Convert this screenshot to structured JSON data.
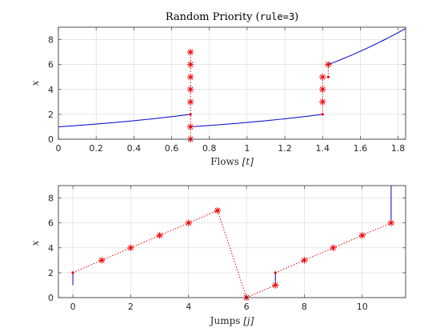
{
  "figure": {
    "title_prefix": "Random Priority (",
    "title_code": "rule=3",
    "title_suffix": ")"
  },
  "chart_data": [
    {
      "type": "line",
      "xlabel_main": "Flows ",
      "xlabel_var": "[t]",
      "ylabel": "x",
      "xlim": [
        0,
        1.84
      ],
      "ylim": [
        0,
        9
      ],
      "x_ticks": [
        0,
        0.2,
        0.4,
        0.6,
        0.8,
        1,
        1.2,
        1.4,
        1.6,
        1.8
      ],
      "x_tick_labels": [
        "0",
        "0.2",
        "0.4",
        "0.6",
        "0.8",
        "1",
        "1.2",
        "1.4",
        "1.6",
        "1.8"
      ],
      "y_ticks": [
        0,
        2,
        4,
        6,
        8
      ],
      "y_tick_labels": [
        "0",
        "2",
        "4",
        "6",
        "8"
      ],
      "grid": true,
      "flow_segments": [
        {
          "t_start": 0,
          "t_end": 0.7,
          "x_start": 1.0,
          "x_end": 2.0
        },
        {
          "t_start": 0.7,
          "t_end": 1.4,
          "x_start": 1.0,
          "x_end": 2.0
        },
        {
          "t_start": 1.43,
          "t_end": 1.84,
          "x_start": 6.0,
          "x_end": 8.9
        }
      ],
      "jump_columns": [
        {
          "t": 0.7,
          "x_from": 2,
          "stars": [
            0,
            1,
            3,
            4,
            5,
            6,
            7
          ]
        },
        {
          "t": 1.4,
          "x_from": 2,
          "stars": [
            3,
            4,
            5
          ]
        },
        {
          "t": 1.43,
          "x_from": 5,
          "stars": [
            6
          ]
        }
      ]
    },
    {
      "type": "line",
      "xlabel_main": "Jumps ",
      "xlabel_var": "[j]",
      "ylabel": "x",
      "xlim": [
        -0.5,
        11.5
      ],
      "ylim": [
        0,
        9
      ],
      "x_ticks": [
        0,
        2,
        4,
        6,
        8,
        10
      ],
      "x_tick_labels": [
        "0",
        "2",
        "4",
        "6",
        "8",
        "10"
      ],
      "y_ticks": [
        0,
        2,
        4,
        6,
        8
      ],
      "y_tick_labels": [
        "0",
        "2",
        "4",
        "6",
        "8"
      ],
      "grid": true,
      "flow_segments": [
        {
          "j": 0,
          "x_start": 1.0,
          "x_end": 2.0
        },
        {
          "j": 7,
          "x_start": 1.0,
          "x_end": 2.0
        },
        {
          "j": 11,
          "x_start": 6.0,
          "x_end": 9.0
        }
      ],
      "jump_points": [
        {
          "j_from": 0,
          "x_from": 2,
          "j": 1,
          "x": 3
        },
        {
          "j_from": 1,
          "x_from": 3,
          "j": 2,
          "x": 4
        },
        {
          "j_from": 2,
          "x_from": 4,
          "j": 3,
          "x": 5
        },
        {
          "j_from": 3,
          "x_from": 5,
          "j": 4,
          "x": 6
        },
        {
          "j_from": 4,
          "x_from": 6,
          "j": 5,
          "x": 7
        },
        {
          "j_from": 5,
          "x_from": 7,
          "j": 6,
          "x": 0
        },
        {
          "j_from": 6,
          "x_from": 0,
          "j": 7,
          "x": 1
        },
        {
          "j_from": 7,
          "x_from": 2,
          "j": 8,
          "x": 3
        },
        {
          "j_from": 8,
          "x_from": 3,
          "j": 9,
          "x": 4
        },
        {
          "j_from": 9,
          "x_from": 4,
          "j": 10,
          "x": 5
        },
        {
          "j_from": 10,
          "x_from": 5,
          "j": 11,
          "x": 6
        }
      ]
    }
  ]
}
